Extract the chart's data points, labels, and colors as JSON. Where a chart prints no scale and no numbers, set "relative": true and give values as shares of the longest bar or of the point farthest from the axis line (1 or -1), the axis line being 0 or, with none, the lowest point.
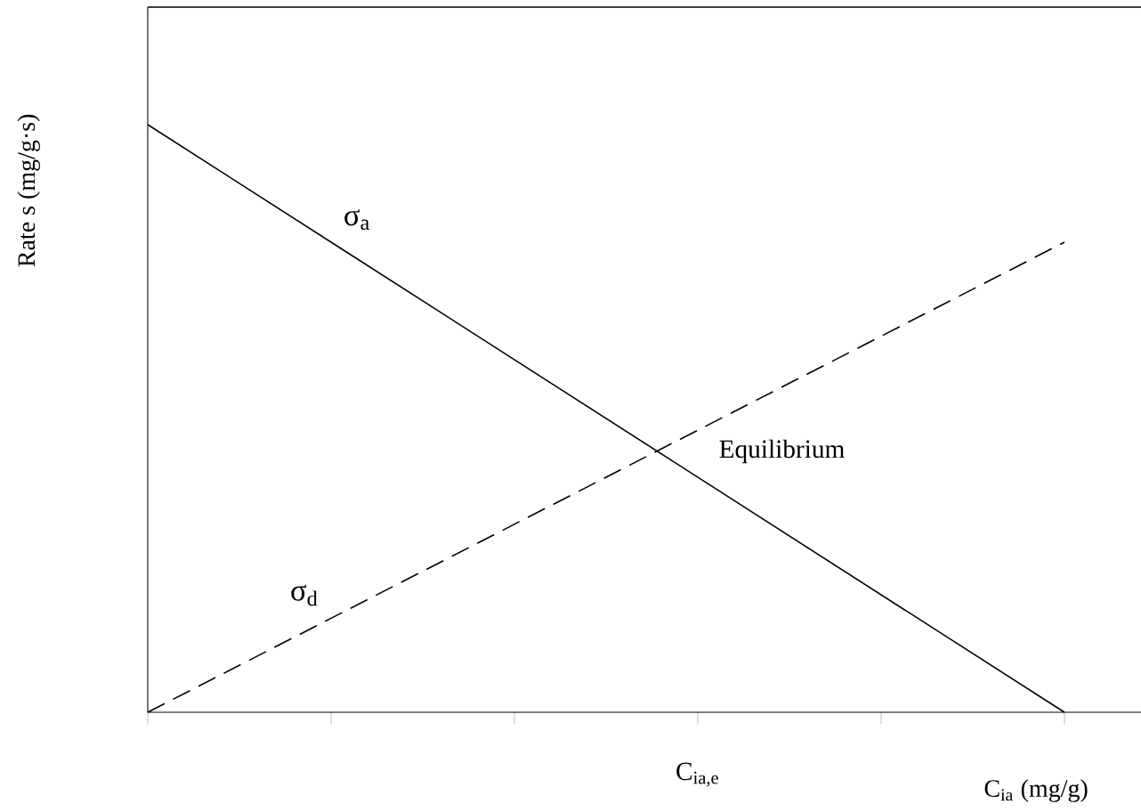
{
  "chart_data": {
    "type": "line",
    "relative": true,
    "ylabel": "Rate s (mg/g·s)",
    "xlabel": "C$_{ia}$ (mg/g)",
    "categories": [
      null,
      null,
      null,
      null,
      null,
      null
    ],
    "series": [
      {
        "name": "σ$_{a}$",
        "color": "#000000",
        "line_style": "solid",
        "values": [
          1,
          0.8,
          0.6,
          0.4,
          0.2,
          0
        ]
      },
      {
        "name": "σ$_{d}$",
        "color": "#000000",
        "line_style": "dashed",
        "values": [
          0,
          0.16,
          0.32,
          0.48,
          0.64,
          0.8
        ]
      }
    ],
    "annotations": [
      "Equilibrium",
      "C$_{ia,e}$"
    ],
    "legend": false
  }
}
